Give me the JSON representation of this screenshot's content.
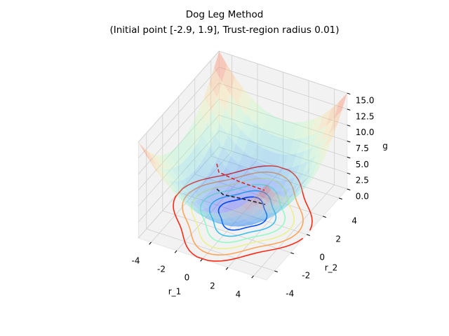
{
  "chart_data": {
    "type": "surface3d",
    "title": "Dog Leg Method",
    "subtitle": "(Initial point [-2.9, 1.9], Trust-region radius 0.01)",
    "xlabel": "r_1",
    "ylabel": "r_2",
    "zlabel": "g",
    "xlim": [
      -5,
      5
    ],
    "ylim": [
      -5,
      5
    ],
    "zlim": [
      0,
      15
    ],
    "xticks": [
      -4,
      -2,
      0,
      2,
      4
    ],
    "yticks": [
      -4,
      -2,
      0,
      2,
      4
    ],
    "zticks": [
      {
        "value": 0,
        "label": "0.0"
      },
      {
        "value": 2.5,
        "label": "2.5"
      },
      {
        "value": 5,
        "label": "5.0"
      },
      {
        "value": 7.5,
        "label": "7.5"
      },
      {
        "value": 10,
        "label": "10.0"
      },
      {
        "value": 12.5,
        "label": "12.5"
      },
      {
        "value": 15,
        "label": "15.0"
      }
    ],
    "grid": true
  }
}
